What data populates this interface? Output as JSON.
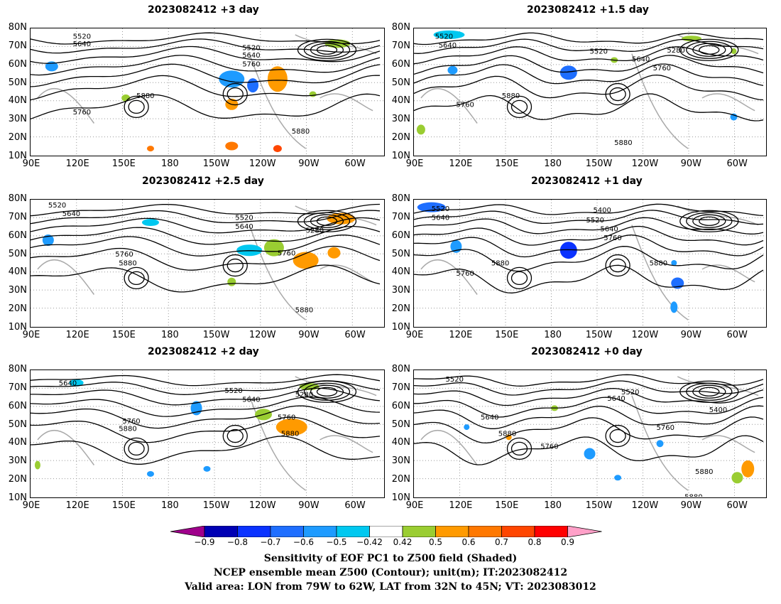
{
  "panels": [
    {
      "title": "2023082412 +3 day"
    },
    {
      "title": "2023082412 +1.5 day"
    },
    {
      "title": "2023082412 +2.5 day"
    },
    {
      "title": "2023082412 +1 day"
    },
    {
      "title": "2023082412 +2 day"
    },
    {
      "title": "2023082412 +0 day"
    }
  ],
  "axes": {
    "lat_labels": [
      "80N",
      "70N",
      "60N",
      "50N",
      "40N",
      "30N",
      "20N",
      "10N"
    ],
    "lon_labels": [
      "90E",
      "120E",
      "150E",
      "180",
      "150W",
      "120W",
      "90W",
      "60W"
    ]
  },
  "contour_labels": {
    "p0": [
      "5520",
      "5640",
      "5520",
      "5640",
      "5760",
      "5880",
      "5760",
      "5880"
    ],
    "p1": [
      "5520",
      "5640",
      "5280",
      "5520",
      "5640",
      "5760",
      "5880",
      "5760",
      "5880"
    ],
    "p2": [
      "5520",
      "5640",
      "5520",
      "5640",
      "5280",
      "5760",
      "5880",
      "5760",
      "5880"
    ],
    "p3": [
      "5520",
      "5640",
      "5400",
      "5520",
      "5640",
      "5760",
      "5880",
      "5760",
      "5880"
    ],
    "p4": [
      "5640",
      "5520",
      "5640",
      "5280",
      "5760",
      "5880",
      "5760",
      "5880"
    ],
    "p5": [
      "5520",
      "5520",
      "5640",
      "5640",
      "5400",
      "5880",
      "5760",
      "5760",
      "5880",
      "5880"
    ]
  },
  "colorbar": {
    "ticks": [
      "−0.9",
      "−0.8",
      "−0.7",
      "−0.6",
      "−0.5",
      "−0.42",
      "0.42",
      "0.5",
      "0.6",
      "0.7",
      "0.8",
      "0.9"
    ],
    "colors": [
      "#0000b4",
      "#0a32ff",
      "#1e6eff",
      "#1e9bff",
      "#00c8f0",
      "#ffffff",
      "#9acd32",
      "#ff9a00",
      "#ff7800",
      "#ff4600",
      "#ff0000"
    ],
    "low_color": "#a0008c",
    "high_color": "#ffa0c8"
  },
  "captions": {
    "line1": "Sensitivity of EOF PC1 to Z500 field (Shaded)",
    "line2": "NCEP ensemble mean Z500 (Contour); unit(m); IT:2023082412",
    "line3": "Valid area: LON from 79W to 62W, LAT from 32N to 45N; VT: 2023083012"
  }
}
